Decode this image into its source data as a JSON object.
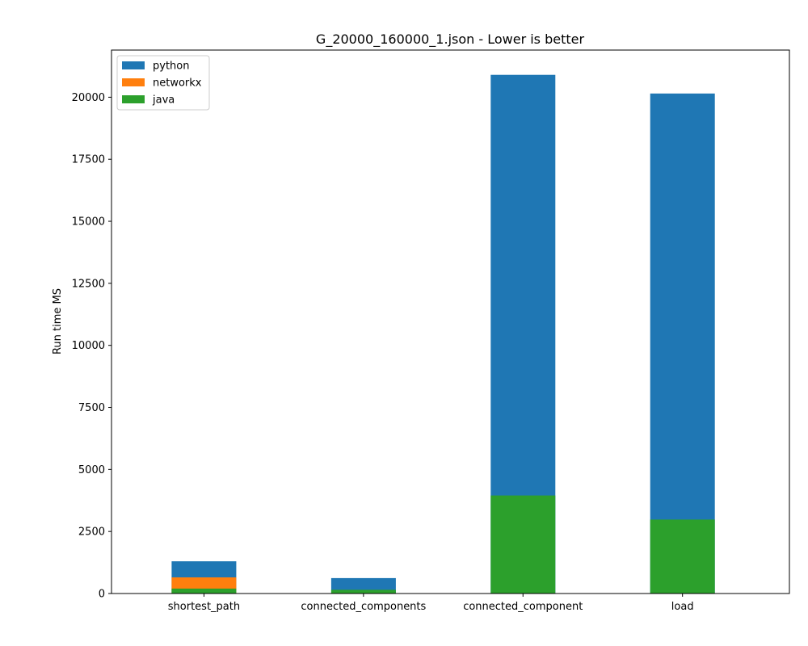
{
  "chart_data": {
    "type": "bar",
    "stacked": false,
    "overlapping": true,
    "title": "G_20000_160000_1.json - Lower is better",
    "xlabel": "",
    "ylabel": "Run time MS",
    "ylim": [
      0,
      21900
    ],
    "yticks": [
      0,
      2500,
      5000,
      7500,
      10000,
      12500,
      15000,
      17500,
      20000
    ],
    "categories": [
      "shortest_path",
      "connected_components",
      "connected_component",
      "load"
    ],
    "series": [
      {
        "name": "python",
        "color": "#1f77b4",
        "values": [
          1300,
          620,
          20900,
          20150
        ]
      },
      {
        "name": "networkx",
        "color": "#ff7f0e",
        "values": [
          650,
          0,
          0,
          0
        ]
      },
      {
        "name": "java",
        "color": "#2ca02c",
        "values": [
          200,
          150,
          3950,
          2980
        ]
      }
    ],
    "legend": "top-left",
    "grid": false
  }
}
